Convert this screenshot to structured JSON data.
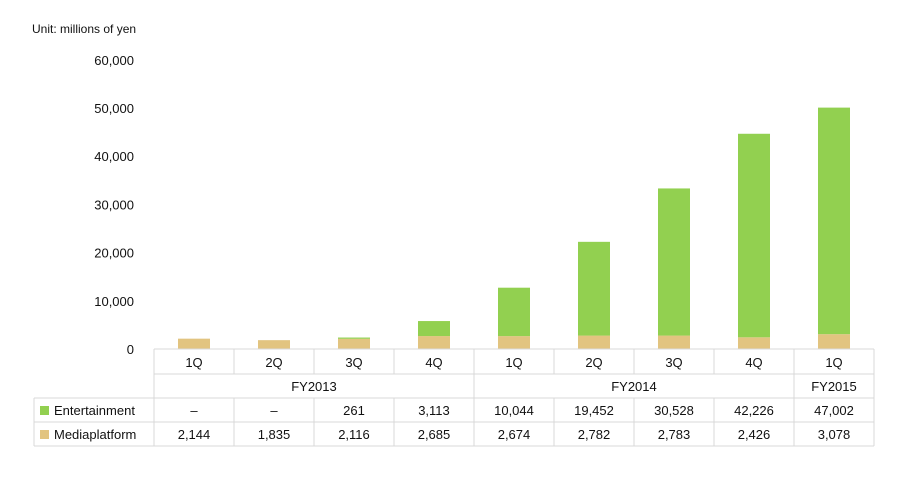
{
  "unit_label": "Unit: millions of yen",
  "chart_data": {
    "type": "bar",
    "stacked": true,
    "categories": [
      "1Q",
      "2Q",
      "3Q",
      "4Q",
      "1Q",
      "2Q",
      "3Q",
      "4Q",
      "1Q"
    ],
    "groups": [
      {
        "label": "FY2013",
        "span": 4
      },
      {
        "label": "FY2014",
        "span": 4
      },
      {
        "label": "FY2015",
        "span": 1
      }
    ],
    "series": [
      {
        "name": "Mediaplatform",
        "color": "#e2c480",
        "values": [
          2144,
          1835,
          2116,
          2685,
          2674,
          2782,
          2783,
          2426,
          3078
        ],
        "labels": [
          "2,144",
          "1,835",
          "2,116",
          "2,685",
          "2,674",
          "2,782",
          "2,783",
          "2,426",
          "3,078"
        ]
      },
      {
        "name": "Entertainment",
        "color": "#92d050",
        "values": [
          0,
          0,
          261,
          3113,
          10044,
          19452,
          30528,
          42226,
          47002
        ],
        "labels": [
          "–",
          "–",
          "261",
          "3,113",
          "10,044",
          "19,452",
          "30,528",
          "42,226",
          "47,002"
        ]
      }
    ],
    "yticks": [
      0,
      10000,
      20000,
      30000,
      40000,
      50000,
      60000
    ],
    "ytick_labels": [
      "0",
      "10,000",
      "20,000",
      "30,000",
      "40,000",
      "50,000",
      "60,000"
    ],
    "ylim": [
      0,
      60000
    ],
    "grid": false,
    "legend": "table-rows"
  }
}
